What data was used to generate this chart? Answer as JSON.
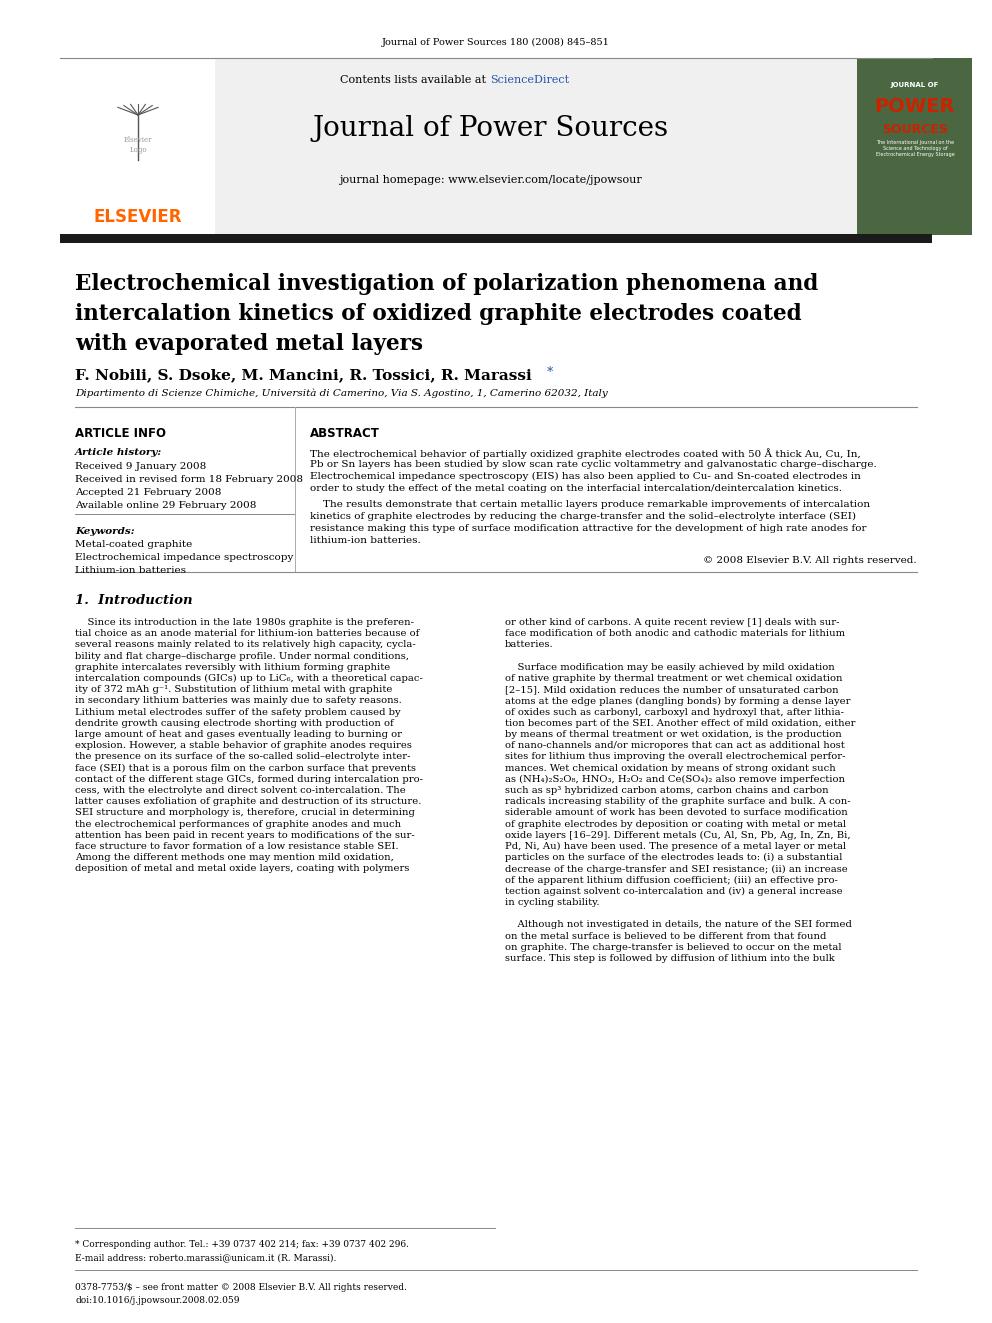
{
  "journal_ref": "Journal of Power Sources 180 (2008) 845–851",
  "header_bg": "#f0f0f0",
  "contents_text": "Contents lists available at ",
  "sciencedirect_text": "ScienceDirect",
  "sciencedirect_color": "#2255aa",
  "journal_title": "Journal of Power Sources",
  "homepage_text": "journal homepage: www.elsevier.com/locate/jpowsour",
  "elsevier_color": "#ff6600",
  "elsevier_text": "ELSEVIER",
  "authors": "F. Nobili, S. Dsoke, M. Mancini, R. Tossici, R. Marassi",
  "affiliation": "Dipartimento di Scienze Chimiche, Università di Camerino, Via S. Agostino, 1, Camerino 62032, Italy",
  "article_info_label": "ARTICLE INFO",
  "abstract_label": "ABSTRACT",
  "article_history_label": "Article history:",
  "received1": "Received 9 January 2008",
  "received2": "Received in revised form 18 February 2008",
  "accepted": "Accepted 21 February 2008",
  "available": "Available online 29 February 2008",
  "keywords_label": "Keywords:",
  "keywords": [
    "Metal-coated graphite",
    "Electrochemical impedance spectroscopy",
    "Lithium-ion batteries"
  ],
  "copyright": "© 2008 Elsevier B.V. All rights reserved.",
  "intro_heading": "1.  Introduction",
  "footer_text1": "* Corresponding author. Tel.: +39 0737 402 214; fax: +39 0737 402 296.",
  "footer_text2": "E-mail address: roberto.marassi@unicam.it (R. Marassi).",
  "footer_text3": "0378-7753/$ – see front matter © 2008 Elsevier B.V. All rights reserved.",
  "footer_text4": "doi:10.1016/j.jpowsour.2008.02.059",
  "cover_bg": "#4a6741",
  "page_bg": "#ffffff",
  "thick_bar_color": "#1a1a1a"
}
